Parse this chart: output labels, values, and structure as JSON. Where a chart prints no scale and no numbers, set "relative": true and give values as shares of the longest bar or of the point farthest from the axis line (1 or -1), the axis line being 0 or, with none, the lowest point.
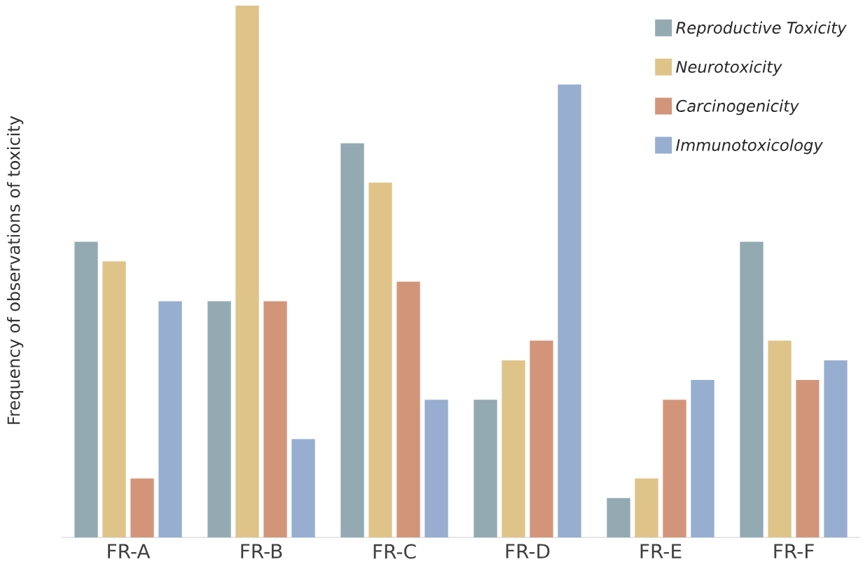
{
  "chart_data": {
    "type": "bar",
    "relative": true,
    "ylabel": "Frequency of observations of toxicity",
    "legend": "top right",
    "categories": [
      "FR-A",
      "FR-B",
      "FR-C",
      "FR-D",
      "FR-E",
      "FR-F"
    ],
    "series": [
      {
        "name": "Reproductive Toxicity",
        "color": "#93aab3",
        "values": [
          0.556,
          0.444,
          0.741,
          0.259,
          0.074,
          0.556
        ]
      },
      {
        "name": "Neurotoxicity",
        "color": "#dfc48a",
        "values": [
          0.519,
          1,
          0.667,
          0.333,
          0.111,
          0.37
        ]
      },
      {
        "name": "Carcinogenicity",
        "color": "#d3957a",
        "values": [
          0.111,
          0.444,
          0.481,
          0.37,
          0.259,
          0.296
        ]
      },
      {
        "name": "Immunotoxicology",
        "color": "#97aed0",
        "values": [
          0.444,
          0.185,
          0.259,
          0.852,
          0.296,
          0.333
        ]
      }
    ]
  }
}
